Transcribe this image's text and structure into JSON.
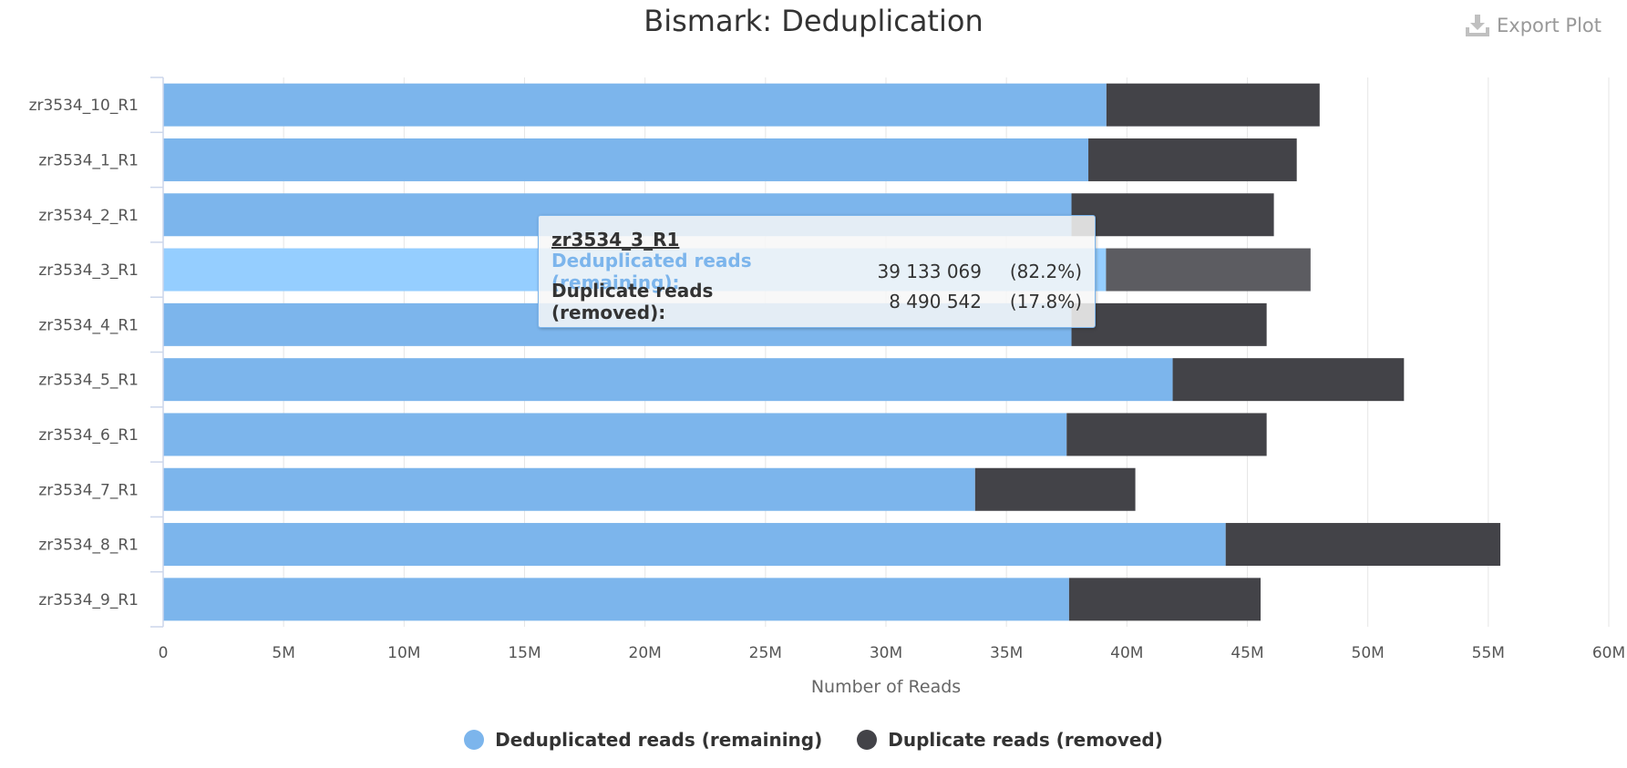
{
  "export": {
    "label": "Export Plot",
    "icon": "download-icon"
  },
  "tooltip": {
    "title": "zr3534_3_R1",
    "rows": [
      {
        "name": "Deduplicated reads (remaining):",
        "value": "39 133 069",
        "pct": "(82.2%)",
        "color": "#7cb5ec"
      },
      {
        "name": "Duplicate reads (removed):",
        "value": "8 490 542",
        "pct": "(17.8%)",
        "color": "#333333"
      }
    ]
  },
  "chart_data": {
    "type": "bar",
    "orientation": "horizontal",
    "stacked": true,
    "title": "Bismark: Deduplication",
    "xlabel": "Number of Reads",
    "ylabel": "",
    "xlim": [
      0,
      60000000
    ],
    "xticks": [
      {
        "value": 0,
        "label": "0"
      },
      {
        "value": 5000000,
        "label": "5M"
      },
      {
        "value": 10000000,
        "label": "10M"
      },
      {
        "value": 15000000,
        "label": "15M"
      },
      {
        "value": 20000000,
        "label": "20M"
      },
      {
        "value": 25000000,
        "label": "25M"
      },
      {
        "value": 30000000,
        "label": "30M"
      },
      {
        "value": 35000000,
        "label": "35M"
      },
      {
        "value": 40000000,
        "label": "40M"
      },
      {
        "value": 45000000,
        "label": "45M"
      },
      {
        "value": 50000000,
        "label": "50M"
      },
      {
        "value": 55000000,
        "label": "55M"
      },
      {
        "value": 60000000,
        "label": "60M"
      }
    ],
    "grid": true,
    "legend_position": "bottom-center",
    "categories": [
      "zr3534_10_R1",
      "zr3534_1_R1",
      "zr3534_2_R1",
      "zr3534_3_R1",
      "zr3534_4_R1",
      "zr3534_5_R1",
      "zr3534_6_R1",
      "zr3534_7_R1",
      "zr3534_8_R1",
      "zr3534_9_R1"
    ],
    "highlighted_category": "zr3534_3_R1",
    "series": [
      {
        "name": "Deduplicated reads (remaining)",
        "color": "#7cb5ec",
        "highlight_color": "#95ceff",
        "values": [
          39150000,
          38400000,
          37700000,
          39133069,
          37700000,
          41900000,
          37500000,
          33700000,
          44100000,
          37600000
        ]
      },
      {
        "name": "Duplicate reads (removed)",
        "color": "#434348",
        "highlight_color": "#5c5c61",
        "values": [
          8850000,
          8650000,
          8400000,
          8490542,
          8100000,
          9600000,
          8300000,
          6650000,
          11400000,
          7950000
        ]
      }
    ]
  }
}
